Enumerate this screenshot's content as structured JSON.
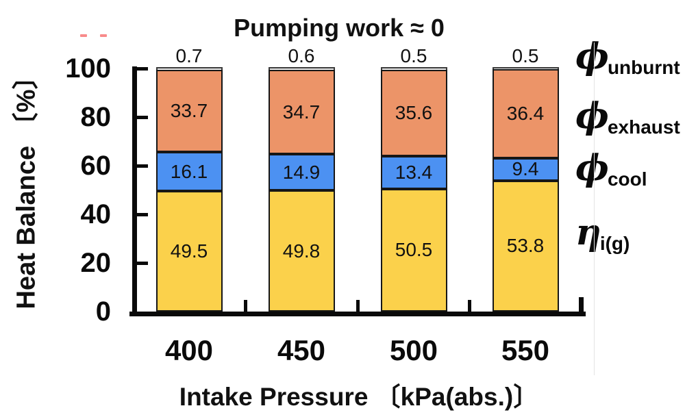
{
  "figure": {
    "title": "Pumping work ≈ 0",
    "y_axis": {
      "label": "Heat Balance 〔%〕",
      "ticks": [
        "100",
        "80",
        "60",
        "40",
        "20",
        "0"
      ]
    },
    "x_axis": {
      "label": "Intake Pressure 〔kPa(abs.)〕",
      "categories": [
        "400",
        "450",
        "500",
        "550"
      ]
    }
  },
  "legend": [
    {
      "symbol": "ϕ",
      "subscript": "unburnt"
    },
    {
      "symbol": "ϕ",
      "subscript": "exhaust"
    },
    {
      "symbol": "ϕ",
      "subscript": "cool"
    },
    {
      "symbol": "η",
      "subscript": "i(g)"
    }
  ],
  "chart_data": {
    "type": "bar",
    "stacked": true,
    "title": "Pumping work ≈ 0",
    "xlabel": "Intake Pressure 〔kPa(abs.)〕",
    "ylabel": "Heat Balance 〔%〕",
    "ylim": [
      0,
      100
    ],
    "yticks": [
      0,
      20,
      40,
      60,
      80,
      100
    ],
    "grid": false,
    "legend_position": "right",
    "categories": [
      "400",
      "450",
      "500",
      "550"
    ],
    "series": [
      {
        "name": "η_i(g)",
        "values": [
          49.5,
          49.8,
          50.5,
          53.8
        ],
        "color": "#FBD14B",
        "label_inside": true
      },
      {
        "name": "ϕ_cool",
        "values": [
          16.1,
          14.9,
          13.4,
          9.4
        ],
        "color": "#4C91F2",
        "label_inside": true
      },
      {
        "name": "ϕ_exhaust",
        "values": [
          33.7,
          34.7,
          35.6,
          36.4
        ],
        "color": "#EC9468",
        "label_inside": true
      },
      {
        "name": "ϕ_unburnt",
        "values": [
          0.7,
          0.6,
          0.5,
          0.5
        ],
        "color": "#ECECEC",
        "label_inside": false
      }
    ]
  },
  "colors": {
    "axis": "#0a0a0a",
    "eta_fill": "#FBD14B",
    "cool_fill": "#4C91F2",
    "exhaust_fill": "#EC9468",
    "unburnt_fill": "#ECECEC",
    "artifact_red": "#f88b8b"
  }
}
